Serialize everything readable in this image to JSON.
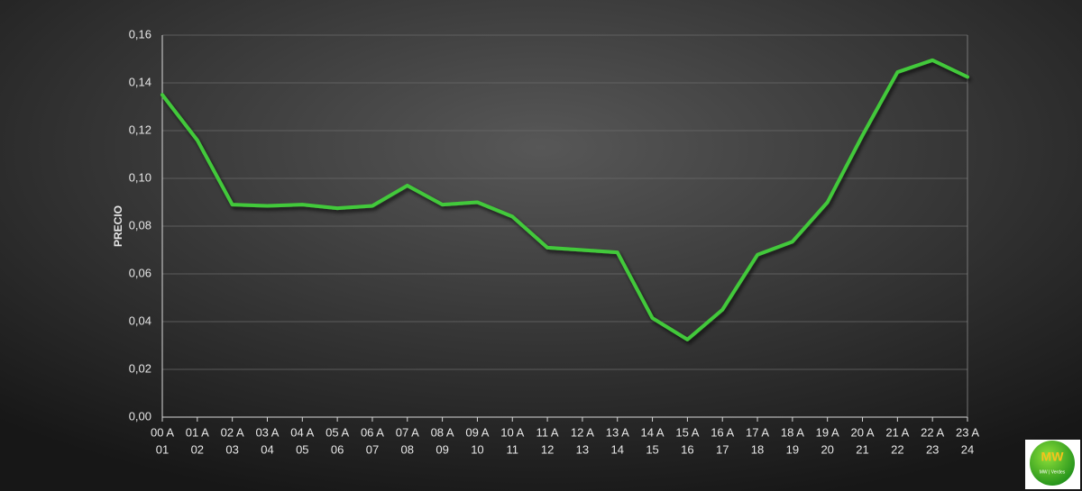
{
  "chart_data": {
    "type": "line",
    "y_label": "PRECIO",
    "categories": [
      [
        "00 A",
        "01"
      ],
      [
        "01 A",
        "02"
      ],
      [
        "02 A",
        "03"
      ],
      [
        "03 A",
        "04"
      ],
      [
        "04 A",
        "05"
      ],
      [
        "05 A",
        "06"
      ],
      [
        "06 A",
        "07"
      ],
      [
        "07 A",
        "08"
      ],
      [
        "08 A",
        "09"
      ],
      [
        "09 A",
        "10"
      ],
      [
        "10 A",
        "11"
      ],
      [
        "11 A",
        "12"
      ],
      [
        "12 A",
        "13"
      ],
      [
        "13 A",
        "14"
      ],
      [
        "14 A",
        "15"
      ],
      [
        "15 A",
        "16"
      ],
      [
        "16 A",
        "17"
      ],
      [
        "17 A",
        "18"
      ],
      [
        "18 A",
        "19"
      ],
      [
        "19 A",
        "20"
      ],
      [
        "20 A",
        "21"
      ],
      [
        "21 A",
        "22"
      ],
      [
        "22 A",
        "23"
      ],
      [
        "23 A",
        "24"
      ]
    ],
    "values": [
      0.135,
      0.116,
      0.089,
      0.0885,
      0.089,
      0.0875,
      0.0885,
      0.097,
      0.089,
      0.09,
      0.084,
      0.071,
      0.07,
      0.069,
      0.0415,
      0.0325,
      0.045,
      0.068,
      0.0735,
      0.09,
      0.118,
      0.1445,
      0.1495,
      0.1425
    ],
    "color": "#43c93a",
    "ylim": [
      0,
      0.16
    ],
    "yticks": [
      {
        "value": 0,
        "label": "0,00"
      },
      {
        "value": 0.02,
        "label": "0,02"
      },
      {
        "value": 0.04,
        "label": "0,04"
      },
      {
        "value": 0.06,
        "label": "0,06"
      },
      {
        "value": 0.08,
        "label": "0,08"
      },
      {
        "value": 0.1,
        "label": "0,10"
      },
      {
        "value": 0.12,
        "label": "0,12"
      },
      {
        "value": 0.14,
        "label": "0,14"
      },
      {
        "value": 0.16,
        "label": "0,16"
      }
    ],
    "grid": true
  },
  "logo": {
    "mark": "MW",
    "text": "MW | Verdes"
  }
}
